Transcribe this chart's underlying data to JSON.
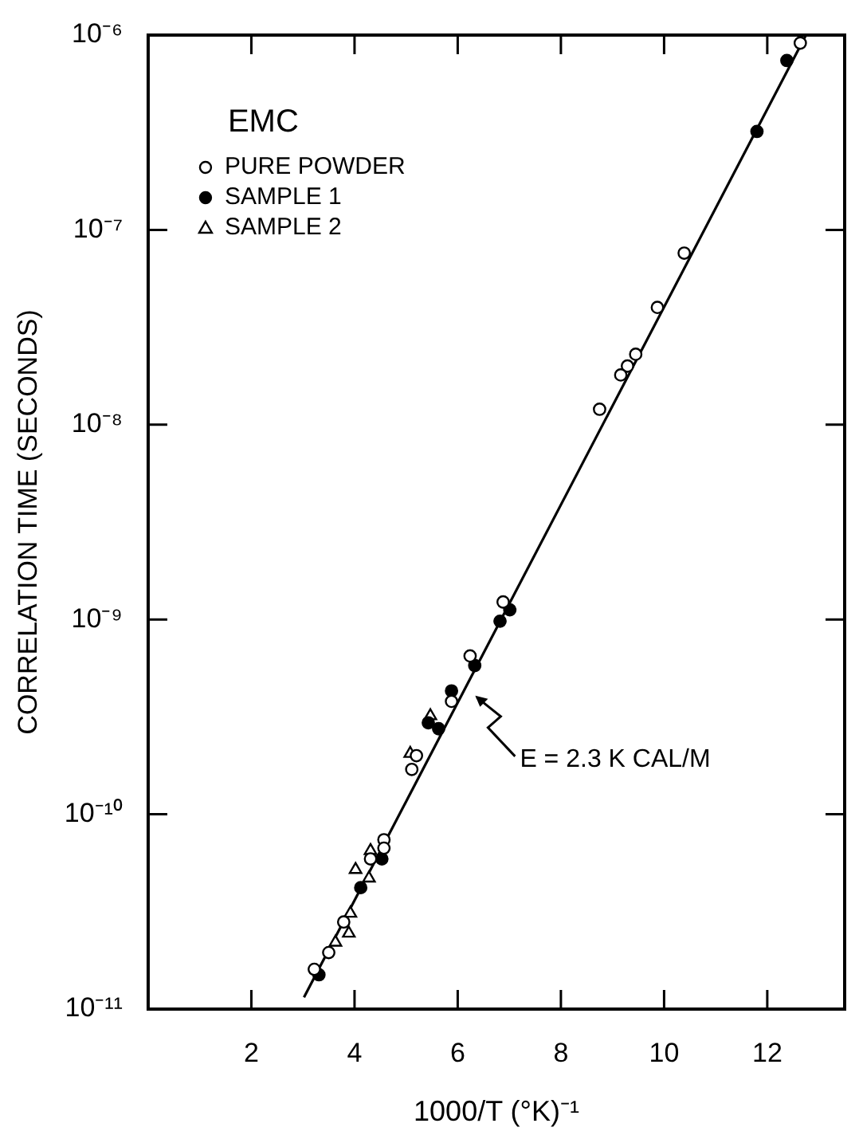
{
  "chart_data": {
    "type": "scatter",
    "xlabel": "1000/T (°K)⁻¹",
    "ylabel": "CORRELATION TIME (SECONDS)",
    "legend_title": "EMC",
    "log": "y",
    "grid": false,
    "legend": "top left",
    "xlim": [
      0,
      13.5
    ],
    "xticks": [
      2,
      4,
      6,
      8,
      10,
      12
    ],
    "ylim": [
      1e-11,
      1e-06
    ],
    "yticks": [
      {
        "value": 1e-11,
        "label": "10⁻¹¹"
      },
      {
        "value": 1e-10,
        "label": "10⁻¹⁰"
      },
      {
        "value": 1e-09,
        "label": "10⁻⁹"
      },
      {
        "value": 1e-08,
        "label": "10⁻⁸"
      },
      {
        "value": 1e-07,
        "label": "10⁻⁷"
      },
      {
        "value": 1e-06,
        "label": "10⁻⁶"
      }
    ],
    "annotations": [
      "E = 2.3 K CAL/M"
    ],
    "series": [
      {
        "name": "PURE POWDER",
        "color": "#ffffff",
        "marker": "circle",
        "x": [
          12.64,
          10.39,
          9.87,
          9.45,
          9.29,
          9.16,
          8.75,
          6.88,
          6.24,
          5.88,
          5.2,
          5.11,
          4.57,
          4.57,
          4.31,
          3.79,
          3.5,
          3.22
        ],
        "values": [
          9.1e-07,
          7.6e-08,
          4e-08,
          2.3e-08,
          2e-08,
          1.8e-08,
          1.2e-08,
          1.23e-09,
          6.5e-10,
          3.8e-10,
          2e-10,
          1.7e-10,
          7.4e-11,
          6.7e-11,
          5.9e-11,
          2.8e-11,
          1.95e-11,
          1.6e-11
        ]
      },
      {
        "name": "SAMPLE 1",
        "color": "#000000",
        "marker": "circle",
        "x": [
          12.38,
          11.8,
          7.01,
          6.82,
          6.33,
          5.88,
          5.43,
          5.63,
          4.53,
          4.12,
          3.31
        ],
        "values": [
          7.4e-07,
          3.2e-07,
          1.12e-09,
          9.8e-10,
          5.8e-10,
          4.3e-10,
          2.95e-10,
          2.75e-10,
          5.9e-11,
          4.2e-11,
          1.5e-11
        ]
      },
      {
        "name": "SAMPLE 2",
        "color": "#ffffff",
        "marker": "triangle",
        "x": [
          5.47,
          5.08,
          4.31,
          4.02,
          4.28,
          3.92,
          3.89,
          3.63
        ],
        "values": [
          3.2e-10,
          2.05e-10,
          6.5e-11,
          5.2e-11,
          4.7e-11,
          3.1e-11,
          2.45e-11,
          2.2e-11
        ]
      },
      {
        "type": "line",
        "color": "#000000",
        "marker": "none",
        "x": [
          3.02,
          12.75
        ],
        "values": [
          1.15e-11,
          1e-06
        ]
      }
    ]
  }
}
